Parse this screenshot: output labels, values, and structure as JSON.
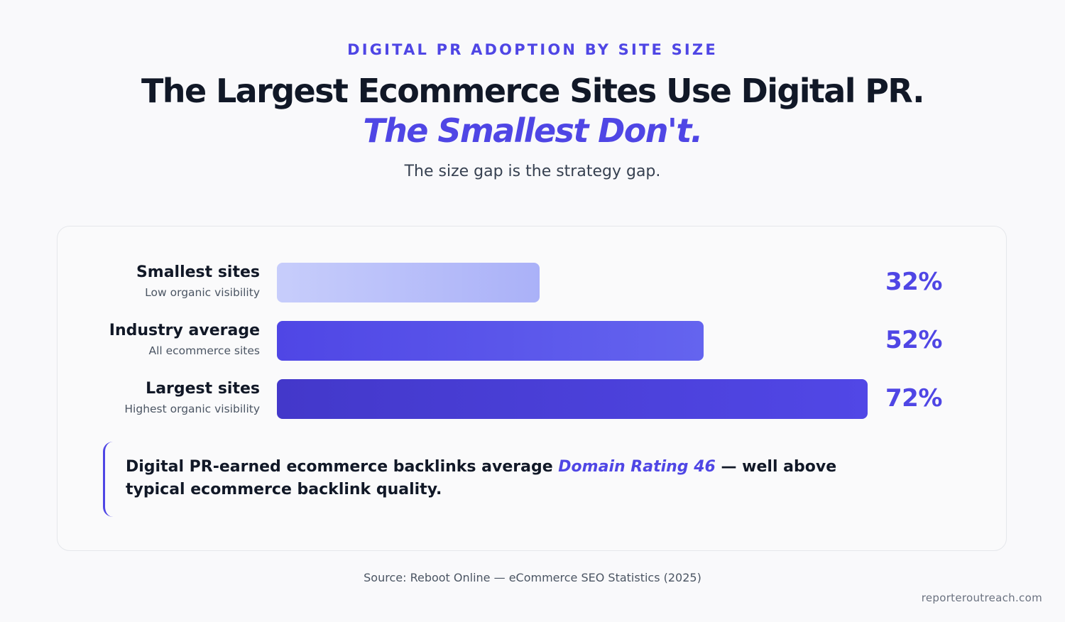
{
  "header": {
    "eyebrow": "DIGITAL PR ADOPTION BY SITE SIZE",
    "headline_main": "The Largest Ecommerce Sites Use Digital PR.",
    "headline_accent": "The Smallest Don't.",
    "subtitle": "The size gap is the strategy gap."
  },
  "chart_data": {
    "type": "bar",
    "orientation": "horizontal",
    "title": "The Largest Ecommerce Sites Use Digital PR. The Smallest Don't.",
    "subtitle": "The size gap is the strategy gap.",
    "categories": [
      "Smallest sites",
      "Industry average",
      "Largest sites"
    ],
    "category_descriptions": [
      "Low organic visibility",
      "All ecommerce sites",
      "Highest organic visibility"
    ],
    "values": [
      32,
      52,
      72
    ],
    "value_labels": [
      "32%",
      "52%",
      "72%"
    ],
    "unit": "%",
    "xlim": [
      0,
      72
    ],
    "grid": false,
    "legend": "none",
    "bar_colors": [
      [
        "#c7cdfb",
        "#aab1f8"
      ],
      [
        "#4f46e5",
        "#6464ef"
      ],
      [
        "#4338ca",
        "#5147e6"
      ]
    ]
  },
  "callout": {
    "text_before": "Digital PR-earned ecommerce backlinks average ",
    "highlight": "Domain Rating 46",
    "text_after": " — well above typical ecommerce backlink quality."
  },
  "footer": {
    "source": "Source: Reboot Online — eCommerce SEO Statistics (2025)",
    "watermark": "reporteroutreach.com"
  },
  "colors": {
    "accent": "#4f46e5",
    "text": "#111827",
    "background": "#f9f9fb"
  }
}
